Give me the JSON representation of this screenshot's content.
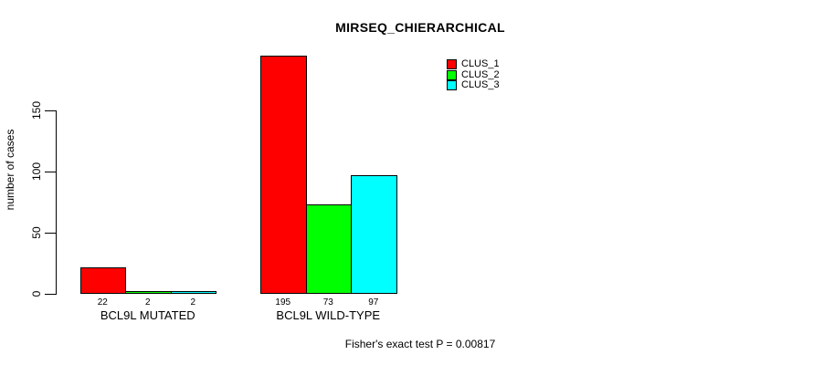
{
  "title": "MIRSEQ_CHIERARCHICAL",
  "footer": {
    "caption": "Fisher's exact test P = 0.00817"
  },
  "chart_data": {
    "type": "bar",
    "grouped": true,
    "title": "MIRSEQ_CHIERARCHICAL",
    "categories": [
      "BCL9L MUTATED",
      "BCL9L WILD-TYPE"
    ],
    "series": [
      {
        "name": "CLUS_1",
        "color": "#ff0000",
        "values": [
          22,
          195
        ]
      },
      {
        "name": "CLUS_2",
        "color": "#00ff00",
        "values": [
          2,
          73
        ]
      },
      {
        "name": "CLUS_3",
        "color": "#00ffff",
        "values": [
          2,
          97
        ]
      }
    ],
    "xlabel": "",
    "ylabel": "number of cases",
    "yticks": [
      0,
      50,
      100,
      150
    ],
    "ylim": [
      0,
      205
    ],
    "bar_value_labels": [
      [
        "22",
        "2",
        "2"
      ],
      [
        "195",
        "73",
        "97"
      ]
    ],
    "grid": false,
    "legend_position": "top-right",
    "annotation": "Fisher's exact test P = 0.00817",
    "colors": {
      "axis": "#000000",
      "text": "#000000",
      "background": "#ffffff"
    }
  }
}
